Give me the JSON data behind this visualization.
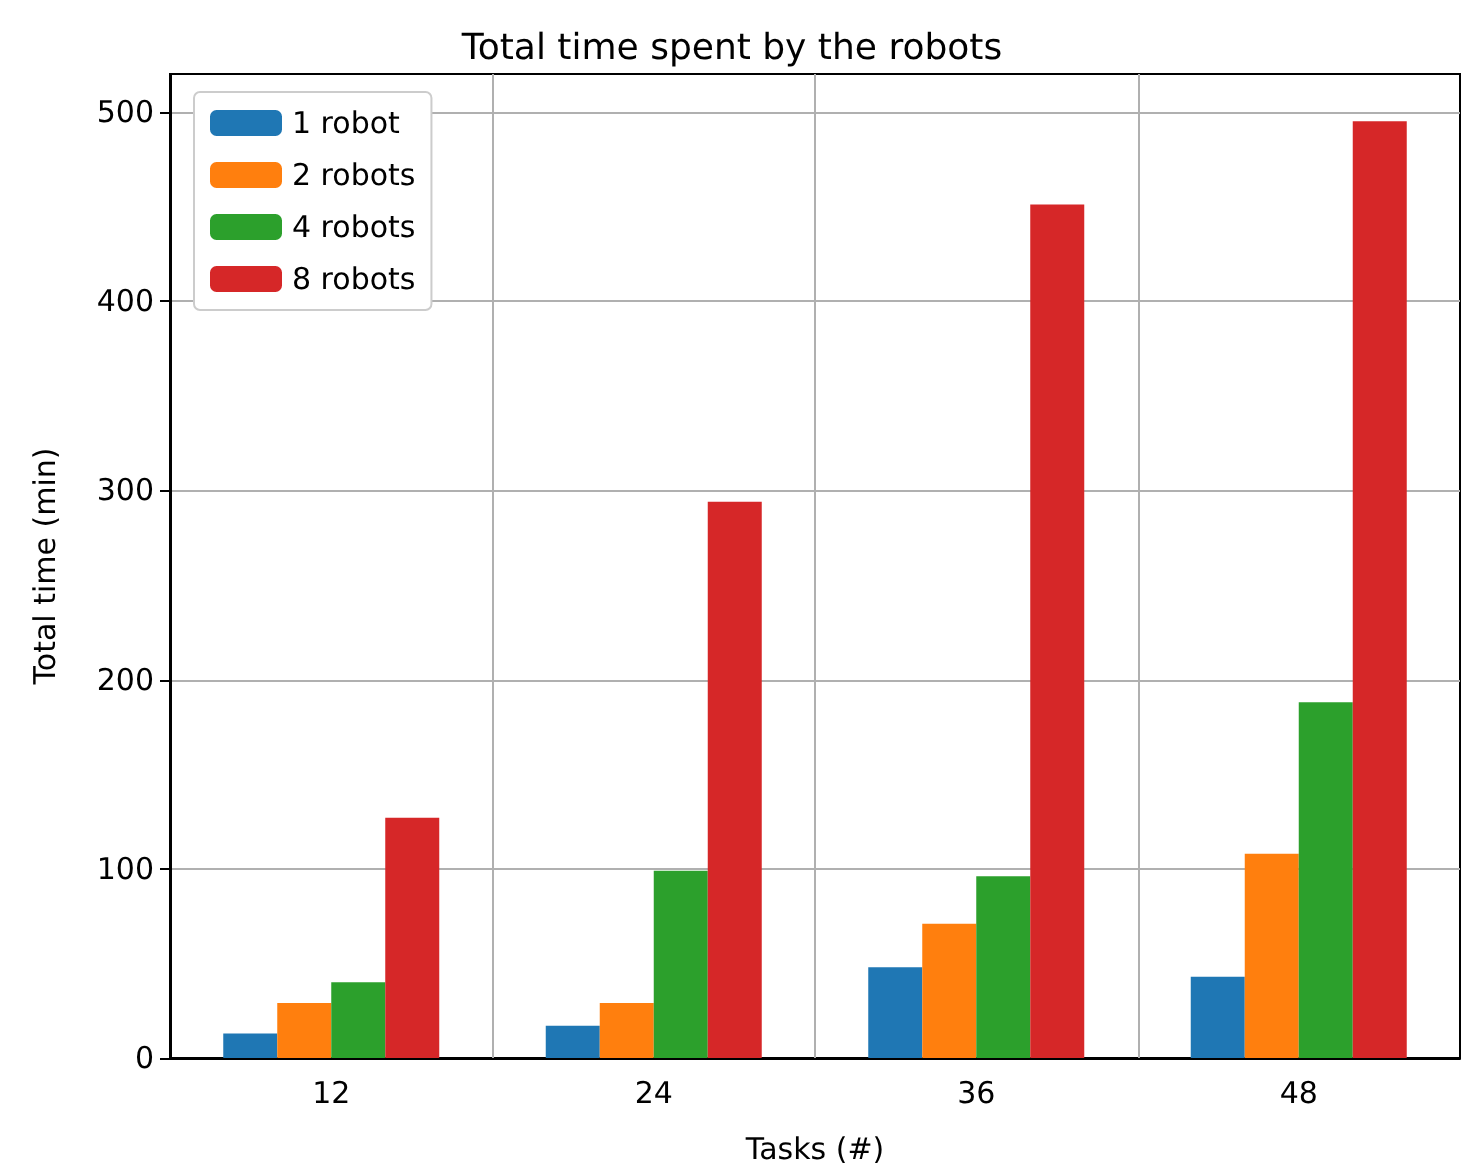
{
  "chart_data": {
    "type": "bar",
    "title": "Total time spent by the robots",
    "xlabel": "Tasks (#)",
    "ylabel": "Total time (min)",
    "categories": [
      "12",
      "24",
      "36",
      "48"
    ],
    "series": [
      {
        "name": "1 robot",
        "color": "#1f77b4",
        "values": [
          13,
          17,
          48,
          43
        ]
      },
      {
        "name": "2 robots",
        "color": "#ff7f0e",
        "values": [
          29,
          29,
          71,
          108
        ]
      },
      {
        "name": "4 robots",
        "color": "#2ca02c",
        "values": [
          40,
          99,
          96,
          188
        ]
      },
      {
        "name": "8 robots",
        "color": "#d62728",
        "values": [
          127,
          294,
          451,
          495
        ]
      }
    ],
    "ylim": [
      0,
      520
    ],
    "yticks": [
      0,
      100,
      200,
      300,
      400,
      500
    ],
    "grid": true,
    "legend": "top left"
  }
}
